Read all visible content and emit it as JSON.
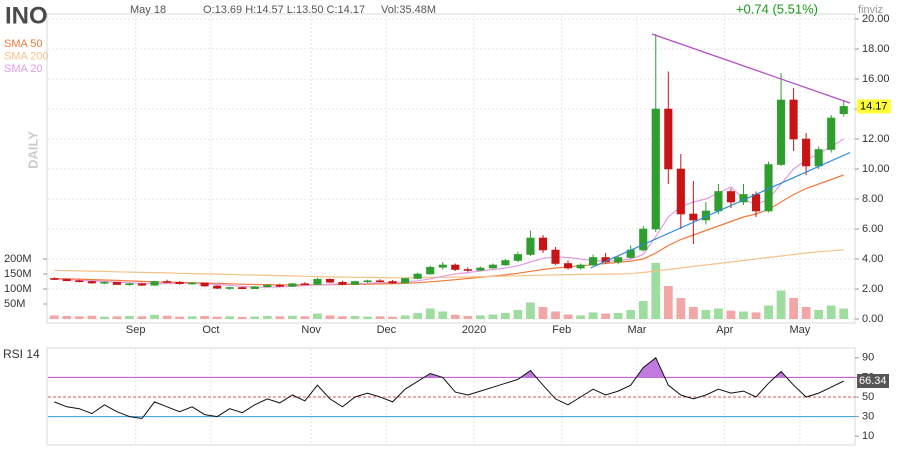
{
  "chart_data": [
    {
      "type": "candlestick",
      "title": "INO",
      "date": "May 18",
      "ohlc_label": "O:13.69 H:14.57 L:13.50 C:14.17",
      "volume_label": "Vol:35.48M",
      "change_label": "+0.74 (5.51%)",
      "change_color": "#1a9a1a",
      "timeframe": "DAILY",
      "brand": "finviz",
      "categories": [
        null,
        null,
        null,
        null,
        null,
        null,
        null,
        "Sep",
        null,
        null,
        null,
        null,
        null,
        "Oct",
        null,
        null,
        null,
        null,
        null,
        null,
        null,
        "Nov",
        null,
        null,
        null,
        null,
        null,
        "Dec",
        null,
        null,
        null,
        null,
        null,
        null,
        "2020",
        null,
        null,
        null,
        null,
        null,
        null,
        "Feb",
        null,
        null,
        null,
        null,
        null,
        "Mar",
        null,
        null,
        null,
        null,
        null,
        null,
        "Apr",
        null,
        null,
        null,
        null,
        null,
        "May",
        null,
        null,
        null
      ],
      "open": [
        2.7,
        2.65,
        2.55,
        2.5,
        2.4,
        2.45,
        2.3,
        2.35,
        2.25,
        2.5,
        2.45,
        2.35,
        2.4,
        2.2,
        2.05,
        2.1,
        2.02,
        2.15,
        2.25,
        2.18,
        2.35,
        2.3,
        2.65,
        2.45,
        2.3,
        2.5,
        2.55,
        2.5,
        2.4,
        2.7,
        3.0,
        3.45,
        3.6,
        3.3,
        3.25,
        3.4,
        3.6,
        3.9,
        4.3,
        5.4,
        4.6,
        3.7,
        3.4,
        3.6,
        4.1,
        3.8,
        4.1,
        4.6,
        6.0,
        14.0,
        10.0,
        7.0,
        6.6,
        7.2,
        8.5,
        7.8,
        8.3,
        7.2,
        10.3,
        14.6,
        12.0,
        10.2,
        11.3,
        13.69
      ],
      "high": [
        2.78,
        2.7,
        2.62,
        2.55,
        2.5,
        2.48,
        2.4,
        2.42,
        2.55,
        2.62,
        2.52,
        2.45,
        2.42,
        2.25,
        2.15,
        2.15,
        2.2,
        2.3,
        2.35,
        2.4,
        2.45,
        2.75,
        2.7,
        2.55,
        2.55,
        2.62,
        2.65,
        2.6,
        2.75,
        3.1,
        3.55,
        3.8,
        3.7,
        3.45,
        3.5,
        3.7,
        4.0,
        4.5,
        5.9,
        5.6,
        4.8,
        3.9,
        3.7,
        4.3,
        4.4,
        4.2,
        4.9,
        6.2,
        19.0,
        16.5,
        11.0,
        9.2,
        7.8,
        9.0,
        8.7,
        9.0,
        8.5,
        10.5,
        16.4,
        15.4,
        12.4,
        11.5,
        13.6,
        14.57
      ],
      "low": [
        2.6,
        2.52,
        2.45,
        2.35,
        2.32,
        2.28,
        2.22,
        2.2,
        2.22,
        2.4,
        2.3,
        2.28,
        2.15,
        2.0,
        1.95,
        1.98,
        2.0,
        2.1,
        2.12,
        2.15,
        2.28,
        2.28,
        2.4,
        2.25,
        2.28,
        2.4,
        2.45,
        2.35,
        2.38,
        2.65,
        2.95,
        3.3,
        3.2,
        3.15,
        3.2,
        3.35,
        3.55,
        3.8,
        4.2,
        4.4,
        3.6,
        3.3,
        3.3,
        3.55,
        3.7,
        3.65,
        4.0,
        4.5,
        5.8,
        9.0,
        6.0,
        5.0,
        6.3,
        7.0,
        7.4,
        7.6,
        6.8,
        7.1,
        10.2,
        11.2,
        9.6,
        10.0,
        11.1,
        13.5
      ],
      "close": [
        2.65,
        2.55,
        2.5,
        2.4,
        2.45,
        2.3,
        2.35,
        2.25,
        2.5,
        2.45,
        2.35,
        2.4,
        2.2,
        2.05,
        2.1,
        2.02,
        2.15,
        2.25,
        2.18,
        2.35,
        2.3,
        2.65,
        2.45,
        2.3,
        2.5,
        2.55,
        2.5,
        2.4,
        2.7,
        3.0,
        3.45,
        3.6,
        3.3,
        3.25,
        3.4,
        3.6,
        3.9,
        4.3,
        5.4,
        4.6,
        3.7,
        3.4,
        3.6,
        4.1,
        3.8,
        4.1,
        4.6,
        6.0,
        14.0,
        10.0,
        7.0,
        6.6,
        7.2,
        8.5,
        7.8,
        8.3,
        7.2,
        10.3,
        14.6,
        12.0,
        10.2,
        11.3,
        13.4,
        14.17
      ],
      "up_color": "#2e9e2e",
      "down_color": "#c81414",
      "last_price_label": "14.17",
      "series": [
        {
          "name": "SMA 50",
          "color": "#f07a3c",
          "values": [
            2.7,
            2.68,
            2.66,
            2.63,
            2.6,
            2.57,
            2.54,
            2.51,
            2.48,
            2.46,
            2.44,
            2.42,
            2.4,
            2.38,
            2.35,
            2.32,
            2.3,
            2.29,
            2.28,
            2.27,
            2.27,
            2.28,
            2.29,
            2.3,
            2.31,
            2.32,
            2.34,
            2.36,
            2.38,
            2.42,
            2.48,
            2.55,
            2.62,
            2.7,
            2.78,
            2.86,
            2.95,
            3.05,
            3.18,
            3.3,
            3.4,
            3.48,
            3.55,
            3.62,
            3.7,
            3.78,
            3.86,
            4.0,
            4.4,
            4.9,
            5.3,
            5.6,
            5.9,
            6.2,
            6.5,
            6.8,
            7.0,
            7.3,
            7.8,
            8.3,
            8.7,
            9.0,
            9.3,
            9.6
          ]
        },
        {
          "name": "SMA 200",
          "color": "#f6c28a",
          "values": [
            3.25,
            3.23,
            3.21,
            3.19,
            3.17,
            3.15,
            3.13,
            3.11,
            3.09,
            3.07,
            3.05,
            3.03,
            3.01,
            2.99,
            2.97,
            2.95,
            2.93,
            2.91,
            2.89,
            2.87,
            2.85,
            2.83,
            2.81,
            2.79,
            2.78,
            2.77,
            2.76,
            2.75,
            2.75,
            2.76,
            2.77,
            2.78,
            2.79,
            2.8,
            2.82,
            2.84,
            2.86,
            2.88,
            2.9,
            2.92,
            2.94,
            2.96,
            2.97,
            2.98,
            2.99,
            3.0,
            3.02,
            3.1,
            3.2,
            3.3,
            3.4,
            3.5,
            3.6,
            3.7,
            3.8,
            3.9,
            4.0,
            4.1,
            4.2,
            4.3,
            4.4,
            4.48,
            4.55,
            4.62
          ]
        },
        {
          "name": "SMA 20",
          "color": "#e39be3",
          "values": [
            2.65,
            2.62,
            2.58,
            2.54,
            2.5,
            2.46,
            2.42,
            2.38,
            2.36,
            2.36,
            2.37,
            2.37,
            2.35,
            2.3,
            2.25,
            2.18,
            2.13,
            2.12,
            2.14,
            2.18,
            2.22,
            2.28,
            2.32,
            2.35,
            2.36,
            2.38,
            2.42,
            2.45,
            2.48,
            2.55,
            2.68,
            2.85,
            3.0,
            3.1,
            3.2,
            3.3,
            3.4,
            3.55,
            3.8,
            4.05,
            4.15,
            4.1,
            4.0,
            3.9,
            3.85,
            3.9,
            4.0,
            4.3,
            5.5,
            6.8,
            7.5,
            7.8,
            8.0,
            8.4,
            8.8,
            8.0,
            7.6,
            8.0,
            9.0,
            10.0,
            10.6,
            11.0,
            11.5,
            12.0
          ]
        }
      ],
      "volume": {
        "axis": "y2",
        "up_color": "#9fdc9f",
        "down_color": "#f2a6a6",
        "values": [
          12,
          10,
          9,
          11,
          8,
          9,
          10,
          9,
          14,
          11,
          8,
          9,
          10,
          8,
          9,
          7,
          8,
          10,
          9,
          11,
          9,
          18,
          12,
          9,
          10,
          8,
          9,
          8,
          12,
          20,
          35,
          25,
          14,
          10,
          12,
          15,
          20,
          30,
          55,
          40,
          25,
          15,
          12,
          22,
          18,
          20,
          30,
          60,
          187,
          110,
          70,
          40,
          30,
          35,
          28,
          25,
          22,
          45,
          95,
          70,
          40,
          30,
          45,
          35
        ]
      },
      "ylim": [
        0,
        20
      ],
      "yticks": [
        {
          "value": 0,
          "label": "0.00"
        },
        {
          "value": 2,
          "label": "2.00"
        },
        {
          "value": 4,
          "label": "4.00"
        },
        {
          "value": 6,
          "label": "6.00"
        },
        {
          "value": 8,
          "label": "8.00"
        },
        {
          "value": 10,
          "label": "10.00"
        },
        {
          "value": 12,
          "label": "12.00"
        },
        {
          "value": 14,
          "label": "14.00"
        },
        {
          "value": 16,
          "label": "16.00"
        },
        {
          "value": 18,
          "label": "18.00"
        },
        {
          "value": 20,
          "label": "20.00"
        }
      ],
      "y2lim": [
        0,
        1000
      ],
      "y2ticks": [
        {
          "value": 50,
          "label": "50M"
        },
        {
          "value": 100,
          "label": "100M"
        },
        {
          "value": 150,
          "label": "150M"
        },
        {
          "value": 200,
          "label": "200M"
        }
      ],
      "grid": true,
      "trendlines": [
        {
          "color": "#b44cc8",
          "points": [
            [
              47.7,
              19.0
            ],
            [
              63.5,
              14.4
            ]
          ]
        },
        {
          "color": "#2a8ad4",
          "points": [
            [
              42.8,
              3.4
            ],
            [
              63.5,
              11.1
            ]
          ]
        }
      ]
    },
    {
      "type": "line",
      "title": "RSI 14",
      "color": "#111111",
      "values": [
        45,
        40,
        38,
        33,
        42,
        35,
        30,
        28,
        45,
        40,
        35,
        40,
        32,
        30,
        38,
        34,
        42,
        48,
        44,
        52,
        46,
        62,
        48,
        40,
        50,
        54,
        50,
        45,
        58,
        66,
        74,
        70,
        55,
        52,
        56,
        60,
        64,
        68,
        77,
        62,
        48,
        42,
        50,
        58,
        52,
        56,
        62,
        80,
        90,
        62,
        52,
        48,
        52,
        58,
        54,
        56,
        50,
        64,
        76,
        62,
        50,
        54,
        60,
        66.34
      ],
      "last_value_label": "66.34",
      "ylim": [
        3,
        98
      ],
      "yticks": [
        10,
        30,
        50,
        70,
        90
      ],
      "levels": [
        {
          "value": 70,
          "color": "#b44cc8"
        },
        {
          "value": 50,
          "color": "#e05050",
          "dash": true
        },
        {
          "value": 30,
          "color": "#3a9ad9"
        }
      ],
      "overbought_fill": "#c27ae0"
    }
  ]
}
